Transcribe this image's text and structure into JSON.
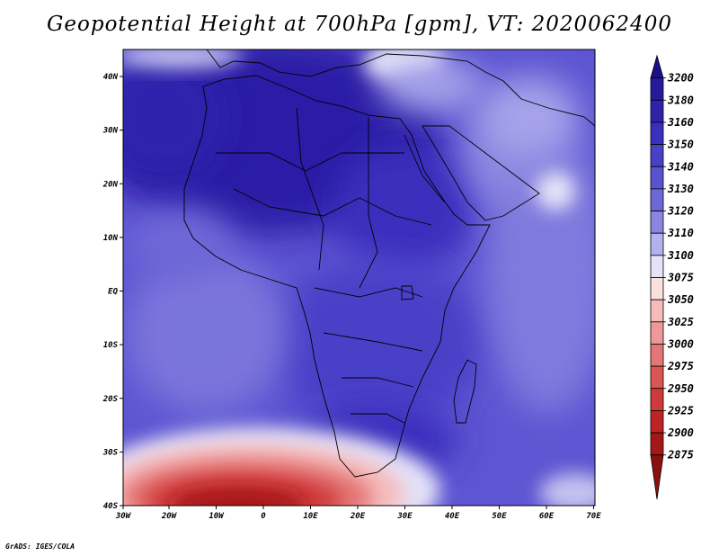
{
  "title": "Geopotential Height at 700hPa [gpm], VT: 2020062400",
  "credit": "GrADS: IGES/COLA",
  "map": {
    "lon_ticks": [
      "30W",
      "20W",
      "10W",
      "0",
      "10E",
      "20E",
      "30E",
      "40E",
      "50E",
      "60E",
      "70E"
    ],
    "lat_ticks": [
      "40N",
      "30N",
      "20N",
      "10N",
      "EQ",
      "10S",
      "20S",
      "30S",
      "40S"
    ]
  },
  "colorbar": {
    "levels": [
      "3200",
      "3180",
      "3160",
      "3150",
      "3140",
      "3130",
      "3120",
      "3110",
      "3100",
      "3075",
      "3050",
      "3025",
      "3000",
      "2975",
      "2950",
      "2925",
      "2900",
      "2875"
    ],
    "colors": [
      "#1d0f8a",
      "#26199b",
      "#2f23ac",
      "#3b2fbd",
      "#4a3fc8",
      "#5b52cf",
      "#6e68d7",
      "#8a86e0",
      "#b4b2ee",
      "#e4e2f8",
      "#fbe0e0",
      "#f6bcbc",
      "#ee9999",
      "#e47676",
      "#db5555",
      "#d03a3a",
      "#bf2424",
      "#a61717",
      "#8c1010"
    ]
  }
}
